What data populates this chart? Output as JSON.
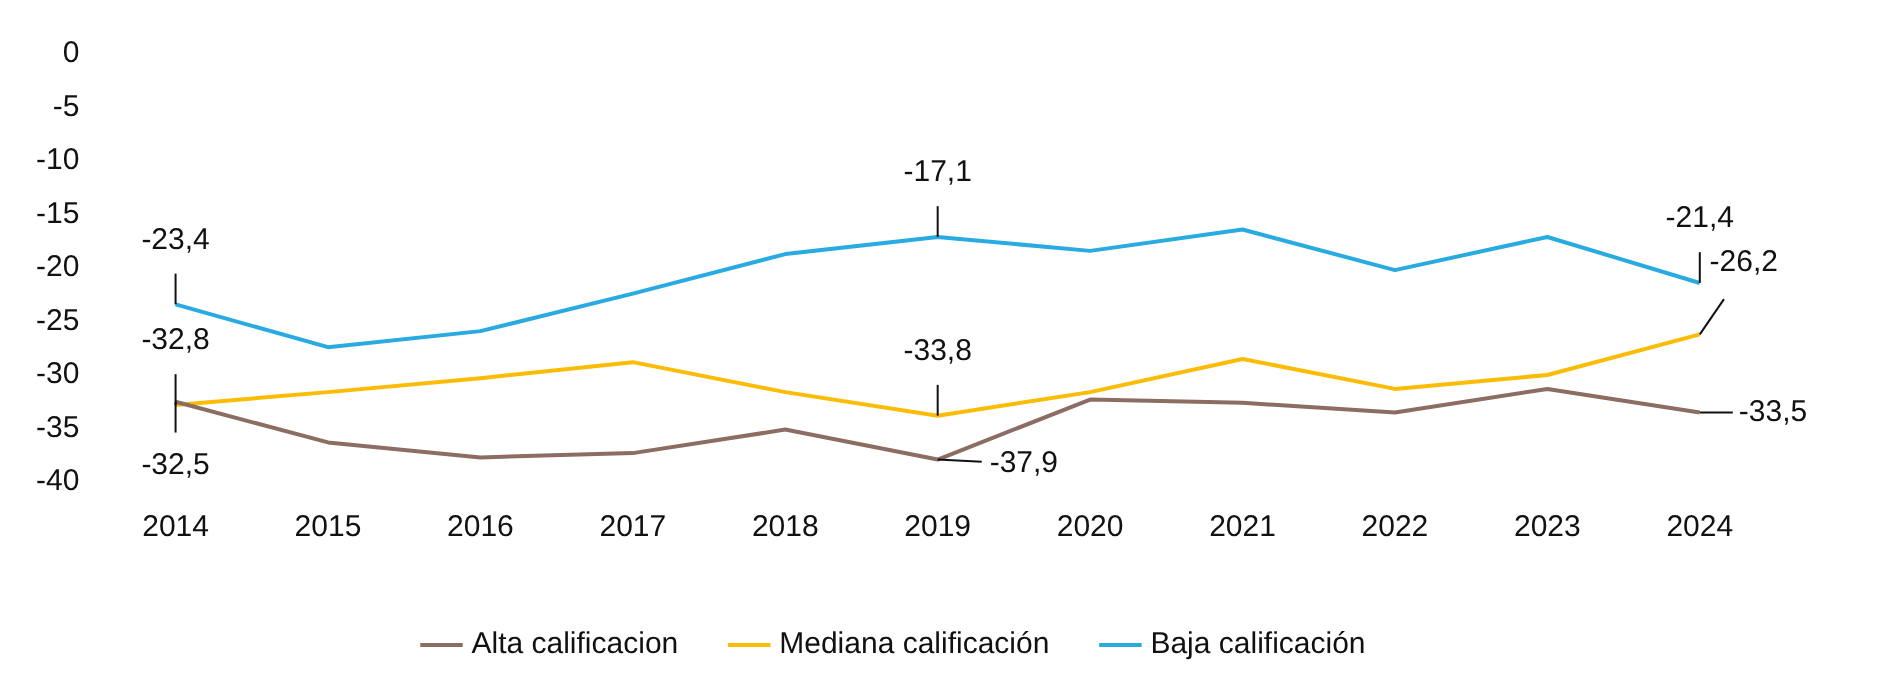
{
  "chart_data": {
    "type": "line",
    "categories": [
      "2014",
      "2015",
      "2016",
      "2017",
      "2018",
      "2019",
      "2020",
      "2021",
      "2022",
      "2023",
      "2024"
    ],
    "series": [
      {
        "name": "Alta calificacion",
        "color": "#8c6d62",
        "values": [
          -32.5,
          -36.3,
          -37.7,
          -37.3,
          -35.1,
          -37.9,
          -32.3,
          -32.6,
          -33.5,
          -31.3,
          -33.5
        ],
        "value_labels": [
          "-32,5",
          null,
          null,
          null,
          null,
          "-37,9",
          null,
          null,
          null,
          null,
          "-33,5"
        ]
      },
      {
        "name": "Mediana calificación",
        "color": "#fbbc05",
        "values": [
          -32.8,
          -31.6,
          -30.3,
          -28.8,
          -31.6,
          -33.8,
          -31.6,
          -28.5,
          -31.3,
          -30.0,
          -26.2
        ],
        "value_labels": [
          "-32,8",
          null,
          null,
          null,
          null,
          "-33,8",
          null,
          null,
          null,
          null,
          "-26,2"
        ]
      },
      {
        "name": "Baja calificación",
        "color": "#29abe2",
        "values": [
          -23.4,
          -27.4,
          -25.9,
          -22.4,
          -18.7,
          -17.1,
          -18.4,
          -16.4,
          -20.2,
          -17.1,
          -21.4
        ],
        "value_labels": [
          "-23,4",
          null,
          null,
          null,
          null,
          "-17,1",
          null,
          null,
          null,
          null,
          "-21,4"
        ]
      }
    ],
    "ylim": [
      -40,
      0
    ],
    "yticks": [
      0,
      -5,
      -10,
      -15,
      -20,
      -25,
      -30,
      -35,
      -40
    ],
    "grid": false,
    "legend": "bottom",
    "marker": "none",
    "line_style": "solid"
  }
}
